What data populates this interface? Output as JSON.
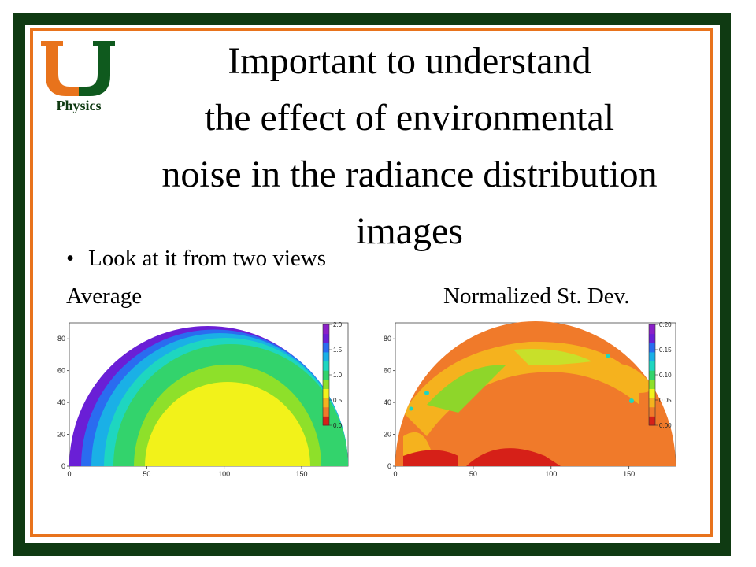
{
  "logo": {
    "letter_alt": "U",
    "label": "Physics",
    "colors": {
      "orange": "#e8731c",
      "green": "#0f5a1e"
    }
  },
  "title": {
    "lines": [
      "Important to understand",
      "the effect of environmental",
      "noise in the radiance distribution",
      "images"
    ]
  },
  "bullet": {
    "symbol": "•",
    "text": "Look at it from two views"
  },
  "panels": {
    "left_label": "Average",
    "right_label": "Normalized St. Dev."
  },
  "chart_data": [
    {
      "type": "heatmap",
      "x_ticks": [
        "0",
        "50",
        "100",
        "150"
      ],
      "y_ticks": [
        "0",
        "20",
        "40",
        "60",
        "80"
      ],
      "xlim": [
        0,
        180
      ],
      "ylim": [
        0,
        90
      ],
      "colorbar_ticks": [
        "0.0",
        "0.5",
        "1.0",
        "1.5",
        "2.0"
      ],
      "colorbar_range": [
        0,
        2.0
      ]
    },
    {
      "type": "heatmap",
      "x_ticks": [
        "0",
        "50",
        "100",
        "150"
      ],
      "y_ticks": [
        "0",
        "20",
        "40",
        "60",
        "80"
      ],
      "xlim": [
        0,
        180
      ],
      "ylim": [
        0,
        90
      ],
      "colorbar_ticks": [
        "0.00",
        "0.05",
        "0.10",
        "0.15",
        "0.20"
      ],
      "colorbar_range": [
        0,
        0.2
      ]
    }
  ]
}
